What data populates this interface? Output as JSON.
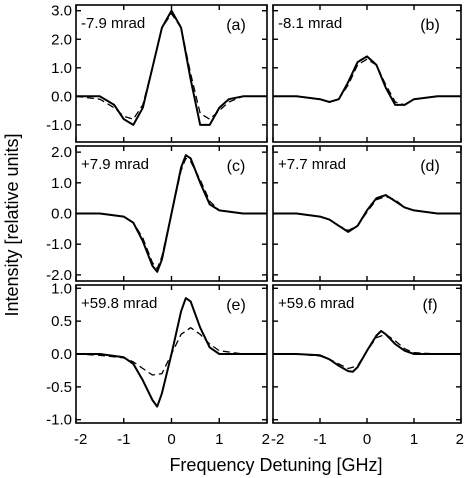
{
  "figure": {
    "ylabel": "Intensity [relative units]",
    "xlabel": "Frequency Detuning [GHz]"
  },
  "chart_data": [
    {
      "type": "line",
      "panel": "(a)",
      "annotation": "-7.9 mrad",
      "xlim": [
        -2,
        2
      ],
      "ylim": [
        -1.6,
        3.2
      ],
      "yticks": [
        3.0,
        2.0,
        1.0,
        0.0,
        -1.0
      ],
      "ytick_labels": [
        "3.0",
        "2.0",
        "1.0",
        "0.0",
        "-1.0"
      ],
      "xticks": [
        -2,
        -1,
        0,
        1,
        2
      ],
      "xtick_labels": [],
      "series": [
        {
          "style": "solid",
          "x": [
            -2.0,
            -1.5,
            -1.2,
            -1.0,
            -0.8,
            -0.6,
            -0.4,
            -0.2,
            0.0,
            0.2,
            0.4,
            0.6,
            0.8,
            1.0,
            1.2,
            1.5,
            2.0
          ],
          "y": [
            0.0,
            0.0,
            -0.3,
            -0.8,
            -1.0,
            -0.4,
            1.0,
            2.4,
            3.0,
            2.4,
            0.6,
            -1.0,
            -1.0,
            -0.4,
            -0.1,
            0.0,
            0.0
          ]
        },
        {
          "style": "dashed",
          "x": [
            -2.0,
            -1.5,
            -1.2,
            -1.0,
            -0.8,
            -0.6,
            -0.4,
            -0.2,
            0.0,
            0.2,
            0.4,
            0.6,
            0.8,
            1.0,
            1.2,
            1.5,
            2.0
          ],
          "y": [
            0.0,
            -0.1,
            -0.4,
            -0.7,
            -0.8,
            -0.3,
            1.0,
            2.4,
            2.9,
            2.4,
            0.8,
            -0.6,
            -0.8,
            -0.5,
            -0.2,
            0.0,
            0.0
          ]
        }
      ]
    },
    {
      "type": "line",
      "panel": "(b)",
      "annotation": "-8.1 mrad",
      "xlim": [
        -2,
        2
      ],
      "ylim": [
        -1.6,
        3.2
      ],
      "yticks": [
        3.0,
        2.0,
        1.0,
        0.0,
        -1.0
      ],
      "ytick_labels": [],
      "xticks": [
        -2,
        -1,
        0,
        1,
        2
      ],
      "xtick_labels": [],
      "series": [
        {
          "style": "solid",
          "x": [
            -2.0,
            -1.5,
            -1.0,
            -0.8,
            -0.6,
            -0.4,
            -0.2,
            0.0,
            0.2,
            0.4,
            0.6,
            0.8,
            1.0,
            1.5,
            2.0
          ],
          "y": [
            0.0,
            0.0,
            -0.1,
            -0.2,
            -0.1,
            0.5,
            1.2,
            1.4,
            1.1,
            0.3,
            -0.3,
            -0.3,
            -0.1,
            0.0,
            0.0
          ]
        },
        {
          "style": "dashed",
          "x": [
            -2.0,
            -1.5,
            -1.0,
            -0.8,
            -0.6,
            -0.4,
            -0.2,
            0.0,
            0.2,
            0.4,
            0.6,
            0.8,
            1.0,
            1.5,
            2.0
          ],
          "y": [
            0.0,
            0.0,
            -0.1,
            -0.2,
            -0.1,
            0.4,
            1.1,
            1.3,
            1.1,
            0.4,
            -0.2,
            -0.3,
            -0.1,
            0.0,
            0.0
          ]
        }
      ]
    },
    {
      "type": "line",
      "panel": "(c)",
      "annotation": "+7.9 mrad",
      "xlim": [
        -2,
        2
      ],
      "ylim": [
        -2.2,
        2.2
      ],
      "yticks": [
        2.0,
        1.0,
        0.0,
        -1.0,
        -2.0
      ],
      "ytick_labels": [
        "2.0",
        "1.0",
        "0.0",
        "-1.0",
        "-2.0"
      ],
      "xticks": [
        -2,
        -1,
        0,
        1,
        2
      ],
      "xtick_labels": [],
      "series": [
        {
          "style": "solid",
          "x": [
            -2.0,
            -1.5,
            -1.0,
            -0.8,
            -0.6,
            -0.4,
            -0.3,
            -0.2,
            0.0,
            0.2,
            0.3,
            0.4,
            0.6,
            0.8,
            1.0,
            1.5,
            2.0
          ],
          "y": [
            0.0,
            0.0,
            -0.1,
            -0.3,
            -0.9,
            -1.7,
            -1.9,
            -1.5,
            0.0,
            1.5,
            1.9,
            1.8,
            1.0,
            0.3,
            0.1,
            0.0,
            0.0
          ]
        },
        {
          "style": "dashed",
          "x": [
            -2.0,
            -1.5,
            -1.0,
            -0.8,
            -0.6,
            -0.4,
            -0.3,
            -0.2,
            0.0,
            0.2,
            0.3,
            0.4,
            0.6,
            0.8,
            1.0,
            1.5,
            2.0
          ],
          "y": [
            0.0,
            0.0,
            -0.1,
            -0.3,
            -0.8,
            -1.6,
            -1.8,
            -1.4,
            0.0,
            1.4,
            1.8,
            1.7,
            1.1,
            0.4,
            0.1,
            0.0,
            0.0
          ]
        }
      ]
    },
    {
      "type": "line",
      "panel": "(d)",
      "annotation": "+7.7 mrad",
      "xlim": [
        -2,
        2
      ],
      "ylim": [
        -2.2,
        2.2
      ],
      "yticks": [
        2.0,
        1.0,
        0.0,
        -1.0,
        -2.0
      ],
      "ytick_labels": [],
      "xticks": [
        -2,
        -1,
        0,
        1,
        2
      ],
      "xtick_labels": [],
      "series": [
        {
          "style": "solid",
          "x": [
            -2.0,
            -1.5,
            -1.0,
            -0.8,
            -0.6,
            -0.4,
            -0.2,
            0.0,
            0.2,
            0.4,
            0.6,
            0.8,
            1.0,
            1.5,
            2.0
          ],
          "y": [
            0.0,
            0.0,
            -0.1,
            -0.2,
            -0.4,
            -0.6,
            -0.4,
            0.1,
            0.5,
            0.6,
            0.4,
            0.2,
            0.1,
            0.0,
            0.0
          ]
        },
        {
          "style": "dashed",
          "x": [
            -2.0,
            -1.5,
            -1.0,
            -0.8,
            -0.6,
            -0.4,
            -0.2,
            0.0,
            0.2,
            0.4,
            0.6,
            0.8,
            1.0,
            1.5,
            2.0
          ],
          "y": [
            0.0,
            0.0,
            -0.1,
            -0.2,
            -0.4,
            -0.55,
            -0.4,
            0.05,
            0.45,
            0.55,
            0.45,
            0.2,
            0.1,
            0.0,
            0.0
          ]
        }
      ]
    },
    {
      "type": "line",
      "panel": "(e)",
      "annotation": "+59.8 mrad",
      "xlim": [
        -2,
        2
      ],
      "ylim": [
        -1.05,
        1.05
      ],
      "yticks": [
        1.0,
        0.5,
        0.0,
        -0.5,
        -1.0
      ],
      "ytick_labels": [
        "1.0",
        "0.5",
        "0.0",
        "-0.5",
        "-1.0"
      ],
      "xticks": [
        -2,
        -1,
        0,
        1,
        2
      ],
      "xtick_labels": [
        "-2",
        "-1",
        "0",
        "1",
        "2"
      ],
      "series": [
        {
          "style": "solid",
          "x": [
            -2.0,
            -1.5,
            -1.0,
            -0.8,
            -0.6,
            -0.4,
            -0.3,
            -0.2,
            0.0,
            0.2,
            0.3,
            0.4,
            0.6,
            0.8,
            1.0,
            1.5,
            2.0
          ],
          "y": [
            0.0,
            0.0,
            -0.05,
            -0.15,
            -0.4,
            -0.7,
            -0.8,
            -0.6,
            0.0,
            0.65,
            0.85,
            0.8,
            0.4,
            0.1,
            0.0,
            0.0,
            0.0
          ]
        },
        {
          "style": "dashed",
          "x": [
            -2.0,
            -1.5,
            -1.0,
            -0.8,
            -0.6,
            -0.4,
            -0.2,
            0.0,
            0.2,
            0.4,
            0.6,
            0.8,
            1.0,
            1.5,
            2.0
          ],
          "y": [
            0.0,
            -0.02,
            -0.06,
            -0.12,
            -0.22,
            -0.32,
            -0.3,
            0.0,
            0.3,
            0.4,
            0.3,
            0.15,
            0.05,
            0.0,
            0.0
          ]
        }
      ]
    },
    {
      "type": "line",
      "panel": "(f)",
      "annotation": "+59.6 mrad",
      "xlim": [
        -2,
        2
      ],
      "ylim": [
        -1.05,
        1.05
      ],
      "yticks": [
        1.0,
        0.5,
        0.0,
        -0.5,
        -1.0
      ],
      "ytick_labels": [],
      "xticks": [
        -2,
        -1,
        0,
        1,
        2
      ],
      "xtick_labels": [
        "-2",
        "-1",
        "0",
        "1",
        "2"
      ],
      "series": [
        {
          "style": "solid",
          "x": [
            -2.0,
            -1.5,
            -1.0,
            -0.8,
            -0.6,
            -0.4,
            -0.3,
            -0.2,
            0.0,
            0.2,
            0.3,
            0.4,
            0.6,
            0.8,
            1.0,
            1.5,
            2.0
          ],
          "y": [
            0.0,
            0.0,
            -0.02,
            -0.08,
            -0.18,
            -0.26,
            -0.27,
            -0.2,
            0.05,
            0.28,
            0.35,
            0.3,
            0.15,
            0.05,
            0.0,
            0.0,
            0.0
          ]
        },
        {
          "style": "dashed",
          "x": [
            -2.0,
            -1.5,
            -1.0,
            -0.8,
            -0.6,
            -0.4,
            -0.2,
            0.0,
            0.2,
            0.4,
            0.6,
            0.8,
            1.0,
            1.5,
            2.0
          ],
          "y": [
            0.0,
            0.0,
            -0.03,
            -0.08,
            -0.15,
            -0.22,
            -0.18,
            0.05,
            0.25,
            0.3,
            0.2,
            0.08,
            0.02,
            0.0,
            0.0
          ]
        }
      ]
    }
  ]
}
